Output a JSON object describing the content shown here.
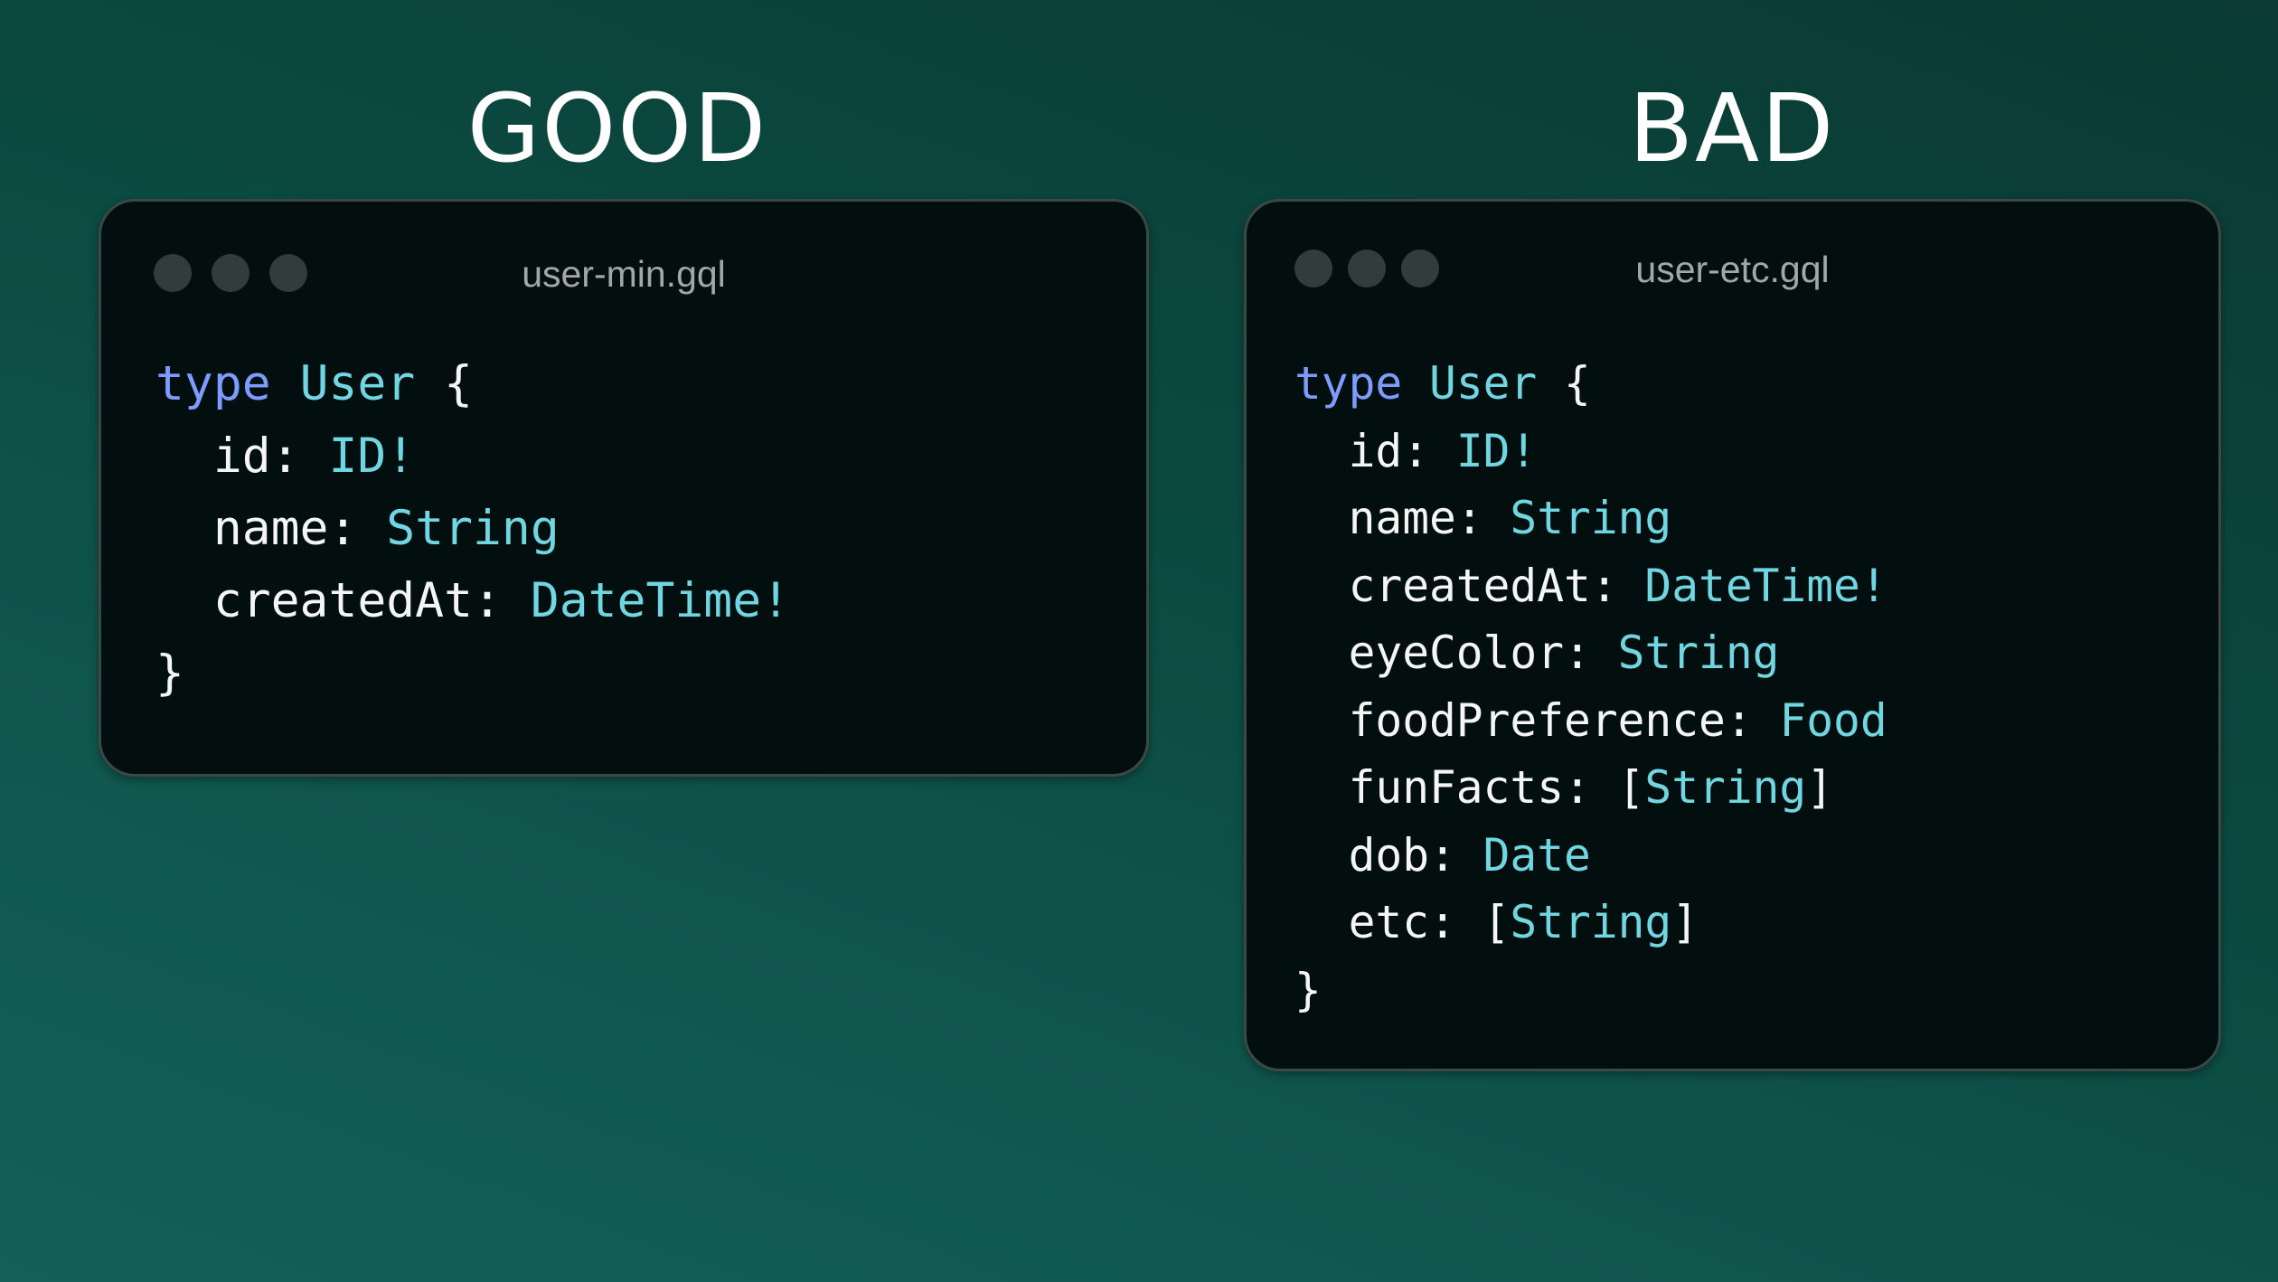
{
  "colors": {
    "keyword": "#7e9bff",
    "type": "#6fd6e2",
    "text": "#f4f6f5",
    "card_bg": "#020f0e"
  },
  "good": {
    "heading": "GOOD",
    "filename": "user-min.gql",
    "lines": [
      [
        [
          "kw",
          "type"
        ],
        [
          "pl",
          " "
        ],
        [
          "ty",
          "User"
        ],
        [
          "pl",
          " {"
        ]
      ],
      [
        [
          "pl",
          "  id: "
        ],
        [
          "ty",
          "ID!"
        ]
      ],
      [
        [
          "pl",
          "  name: "
        ],
        [
          "ty",
          "String"
        ]
      ],
      [
        [
          "pl",
          "  createdAt: "
        ],
        [
          "ty",
          "DateTime!"
        ]
      ],
      [
        [
          "pl",
          "}"
        ]
      ]
    ]
  },
  "bad": {
    "heading": "BAD",
    "filename": "user-etc.gql",
    "lines": [
      [
        [
          "kw",
          "type"
        ],
        [
          "pl",
          " "
        ],
        [
          "ty",
          "User"
        ],
        [
          "pl",
          " {"
        ]
      ],
      [
        [
          "pl",
          "  id: "
        ],
        [
          "ty",
          "ID!"
        ]
      ],
      [
        [
          "pl",
          "  name: "
        ],
        [
          "ty",
          "String"
        ]
      ],
      [
        [
          "pl",
          "  createdAt: "
        ],
        [
          "ty",
          "DateTime!"
        ]
      ],
      [
        [
          "pl",
          "  eyeColor: "
        ],
        [
          "ty",
          "String"
        ]
      ],
      [
        [
          "pl",
          "  foodPreference: "
        ],
        [
          "ty",
          "Food"
        ]
      ],
      [
        [
          "pl",
          "  funFacts: ["
        ],
        [
          "ty",
          "String"
        ],
        [
          "pl",
          "]"
        ]
      ],
      [
        [
          "pl",
          "  dob: "
        ],
        [
          "ty",
          "Date"
        ]
      ],
      [
        [
          "pl",
          "  etc: ["
        ],
        [
          "ty",
          "String"
        ],
        [
          "pl",
          "]"
        ]
      ],
      [
        [
          "pl",
          "}"
        ]
      ]
    ]
  }
}
